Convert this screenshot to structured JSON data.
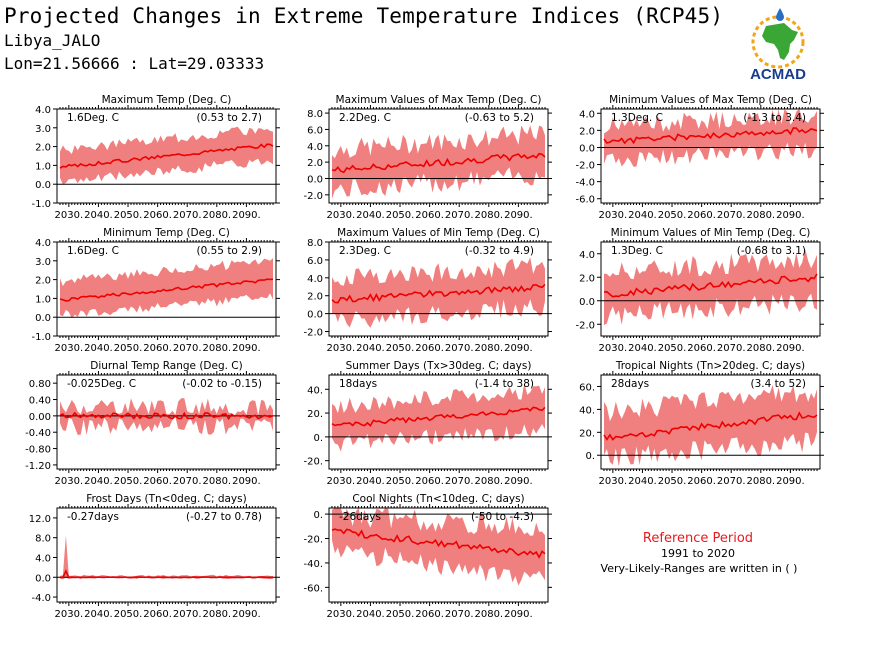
{
  "header": {
    "title": "Projected Changes in Extreme Temperature Indices (RCP45)",
    "location": "Libya_JALO",
    "coordinates": "Lon=21.56666 : Lat=29.03333"
  },
  "logo": {
    "text": "ACMAD",
    "colors": {
      "africa": "#3aa635",
      "ring": "#f2a516",
      "text": "#1a3c8f",
      "drop": "#2a6fc4"
    }
  },
  "reference": {
    "title": "Reference Period",
    "years": "1991 to 2020",
    "note": "Very-Likely-Ranges are written in ( )"
  },
  "colors": {
    "band": "#f08080",
    "line": "#ee0000",
    "zero": "#000000"
  },
  "chart_data": [
    {
      "type": "area",
      "title": "Maximum Temp (Deg. C)",
      "stat": "1.6Deg. C",
      "range": "(0.53 to 2.7)",
      "x_ticks": [
        "2030.",
        "2040.",
        "2050.",
        "2060.",
        "2070.",
        "2080.",
        "2090."
      ],
      "xlim": [
        2026,
        2100
      ],
      "ylim": [
        -1.0,
        4.0
      ],
      "y_ticks": [
        -1.0,
        0.0,
        1.0,
        2.0,
        3.0,
        4.0
      ],
      "y_tick_labels": [
        "-1.0",
        "0.0",
        "1.0",
        "2.0",
        "3.0",
        "4.0"
      ],
      "series": [
        {
          "mean_start": 0.9,
          "mean_end": 2.1,
          "band_low_start": 0.1,
          "band_low_end": 1.3,
          "band_high_start": 1.8,
          "band_high_end": 3.0,
          "noise": 0.15,
          "seed": 3
        }
      ]
    },
    {
      "type": "area",
      "title": "Maximum Values of Max Temp (Deg. C)",
      "stat": "2.2Deg. C",
      "range": "(-0.63 to 5.2)",
      "x_ticks": [
        "2030.",
        "2040.",
        "2050.",
        "2060.",
        "2070.",
        "2080.",
        "2090."
      ],
      "xlim": [
        2026,
        2100
      ],
      "ylim": [
        -3.0,
        8.5
      ],
      "y_ticks": [
        -2.0,
        0.0,
        2.0,
        4.0,
        6.0,
        8.0
      ],
      "y_tick_labels": [
        "-2.0",
        "0.0",
        "2.0",
        "4.0",
        "6.0",
        "8.0"
      ],
      "series": [
        {
          "mean_start": 1.0,
          "mean_end": 2.9,
          "band_low_start": -1.5,
          "band_low_end": 0.5,
          "band_high_start": 3.5,
          "band_high_end": 5.5,
          "noise": 0.7,
          "seed": 7
        }
      ]
    },
    {
      "type": "area",
      "title": "Minimum Values of Max Temp (Deg. C)",
      "stat": "1.3Deg. C",
      "range": "(-1.3 to 3.4)",
      "x_ticks": [
        "2030.",
        "2040.",
        "2050.",
        "2060.",
        "2070.",
        "2080.",
        "2090."
      ],
      "xlim": [
        2026,
        2100
      ],
      "ylim": [
        -6.5,
        4.5
      ],
      "y_ticks": [
        -6.0,
        -4.0,
        -2.0,
        0.0,
        2.0,
        4.0
      ],
      "y_tick_labels": [
        "-6.0",
        "-4.0",
        "-2.0",
        "0.0",
        "2.0",
        "4.0"
      ],
      "series": [
        {
          "mean_start": 0.7,
          "mean_end": 2.1,
          "band_low_start": -1.5,
          "band_low_end": -0.3,
          "band_high_start": 2.5,
          "band_high_end": 3.8,
          "noise": 0.6,
          "seed": 11
        }
      ]
    },
    {
      "type": "area",
      "title": "Minimum Temp (Deg. C)",
      "stat": "1.6Deg. C",
      "range": "(0.55 to 2.9)",
      "x_ticks": [
        "2030.",
        "2040.",
        "2050.",
        "2060.",
        "2070.",
        "2080.",
        "2090."
      ],
      "xlim": [
        2026,
        2100
      ],
      "ylim": [
        -1.0,
        4.0
      ],
      "y_ticks": [
        -1.0,
        0.0,
        1.0,
        2.0,
        3.0,
        4.0
      ],
      "y_tick_labels": [
        "-1.0",
        "0.0",
        "1.0",
        "2.0",
        "3.0",
        "4.0"
      ],
      "series": [
        {
          "mean_start": 0.9,
          "mean_end": 2.0,
          "band_low_start": 0.1,
          "band_low_end": 1.1,
          "band_high_start": 1.9,
          "band_high_end": 3.0,
          "noise": 0.15,
          "seed": 5
        }
      ]
    },
    {
      "type": "area",
      "title": "Maximum Values of Min Temp (Deg. C)",
      "stat": "2.3Deg. C",
      "range": "(-0.32 to 4.9)",
      "x_ticks": [
        "2030.",
        "2040.",
        "2050.",
        "2060.",
        "2070.",
        "2080.",
        "2090."
      ],
      "xlim": [
        2026,
        2100
      ],
      "ylim": [
        -2.5,
        8.0
      ],
      "y_ticks": [
        -2.0,
        0.0,
        2.0,
        4.0,
        6.0,
        8.0
      ],
      "y_tick_labels": [
        "-2.0",
        "0.0",
        "2.0",
        "4.0",
        "6.0",
        "8.0"
      ],
      "series": [
        {
          "mean_start": 1.5,
          "mean_end": 3.0,
          "band_low_start": -0.8,
          "band_low_end": 0.8,
          "band_high_start": 4.0,
          "band_high_end": 5.3,
          "noise": 0.6,
          "seed": 13
        }
      ]
    },
    {
      "type": "area",
      "title": "Minimum Values of Min Temp (Deg. C)",
      "stat": "1.3Deg. C",
      "range": "(-0.68 to 3.1)",
      "x_ticks": [
        "2030.",
        "2040.",
        "2050.",
        "2060.",
        "2070.",
        "2080.",
        "2090."
      ],
      "xlim": [
        2026,
        2100
      ],
      "ylim": [
        -3.0,
        5.0
      ],
      "y_ticks": [
        -2.0,
        0.0,
        2.0,
        4.0
      ],
      "y_tick_labels": [
        "-2.0",
        "0.0",
        "2.0",
        "4.0"
      ],
      "series": [
        {
          "mean_start": 0.5,
          "mean_end": 2.0,
          "band_low_start": -1.3,
          "band_low_end": 0.0,
          "band_high_start": 2.5,
          "band_high_end": 3.6,
          "noise": 0.5,
          "seed": 17
        }
      ]
    },
    {
      "type": "area",
      "title": "Diurnal Temp Range (Deg. C)",
      "stat": "-0.025Deg. C",
      "range": "(-0.02 to -0.15)",
      "x_ticks": [
        "2030.",
        "2040.",
        "2050.",
        "2060.",
        "2070.",
        "2080.",
        "2090."
      ],
      "xlim": [
        2026,
        2100
      ],
      "ylim": [
        -1.3,
        1.0
      ],
      "y_ticks": [
        -1.2,
        -0.8,
        -0.4,
        0.0,
        0.4,
        0.8
      ],
      "y_tick_labels": [
        "-1.20",
        "-0.80",
        "-0.40",
        "0.00",
        "0.40",
        "0.80"
      ],
      "series": [
        {
          "mean_start": 0.0,
          "mean_end": 0.0,
          "band_low_start": -0.25,
          "band_low_end": -0.25,
          "band_high_start": 0.22,
          "band_high_end": 0.22,
          "noise": 0.12,
          "seed": 19
        }
      ]
    },
    {
      "type": "area",
      "title": "Summer Days (Tx>30deg. C; days)",
      "stat": "18days",
      "range": "(-1.4 to 38)",
      "x_ticks": [
        "2030.",
        "2040.",
        "2050.",
        "2060.",
        "2070.",
        "2080.",
        "2090."
      ],
      "xlim": [
        2026,
        2100
      ],
      "ylim": [
        -27,
        52
      ],
      "y_ticks": [
        -20,
        0,
        20,
        40
      ],
      "y_tick_labels": [
        "-20.",
        "0.",
        "20.",
        "40."
      ],
      "series": [
        {
          "mean_start": 9,
          "mean_end": 24,
          "band_low_start": -6,
          "band_low_end": 6,
          "band_high_start": 25,
          "band_high_end": 40,
          "noise": 4,
          "seed": 23
        }
      ]
    },
    {
      "type": "area",
      "title": "Tropical Nights (Tn>20deg. C; days)",
      "stat": "28days",
      "range": "(3.4 to 52)",
      "x_ticks": [
        "2030.",
        "2040.",
        "2050.",
        "2060.",
        "2070.",
        "2080.",
        "2090."
      ],
      "xlim": [
        2026,
        2100
      ],
      "ylim": [
        -12,
        70
      ],
      "y_ticks": [
        0,
        20,
        40,
        60
      ],
      "y_tick_labels": [
        "0.",
        "20.",
        "40.",
        "60."
      ],
      "series": [
        {
          "mean_start": 15,
          "mean_end": 36,
          "band_low_start": -2,
          "band_low_end": 12,
          "band_high_start": 38,
          "band_high_end": 56,
          "noise": 5,
          "seed": 29
        }
      ]
    },
    {
      "type": "area",
      "title": "Frost Days (Tn<0deg. C; days)",
      "stat": "-0.27days",
      "range": "(-0.27 to 0.78)",
      "x_ticks": [
        "2030.",
        "2040.",
        "2050.",
        "2060.",
        "2070.",
        "2080.",
        "2090."
      ],
      "xlim": [
        2026,
        2100
      ],
      "ylim": [
        -5,
        14
      ],
      "y_ticks": [
        -4.0,
        0.0,
        4.0,
        8.0,
        12.0
      ],
      "y_tick_labels": [
        "-4.0",
        "0.0",
        "4.0",
        "8.0",
        "12.0"
      ],
      "series": [
        {
          "mean_start": 0.0,
          "mean_end": 0.0,
          "band_low_start": -0.2,
          "band_low_end": -0.2,
          "band_high_start": 0.3,
          "band_high_end": 0.3,
          "noise": 0.1,
          "seed": 31,
          "spike_year": 2029,
          "spike_value": 8.5
        }
      ]
    },
    {
      "type": "area",
      "title": "Cool Nights (Tn<10deg. C; days)",
      "stat": "-26days",
      "range": "(-50 to -4.3)",
      "x_ticks": [
        "2030.",
        "2040.",
        "2050.",
        "2060.",
        "2070.",
        "2080.",
        "2090."
      ],
      "xlim": [
        2026,
        2100
      ],
      "ylim": [
        -72,
        5
      ],
      "y_ticks": [
        -60,
        -40,
        -20,
        0
      ],
      "y_tick_labels": [
        "-60.",
        "-40.",
        "-20.",
        "0."
      ],
      "series": [
        {
          "mean_start": -14,
          "mean_end": -33,
          "band_low_start": -30,
          "band_low_end": -55,
          "band_high_start": 0,
          "band_high_end": -12,
          "noise": 5,
          "seed": 37
        }
      ]
    }
  ]
}
